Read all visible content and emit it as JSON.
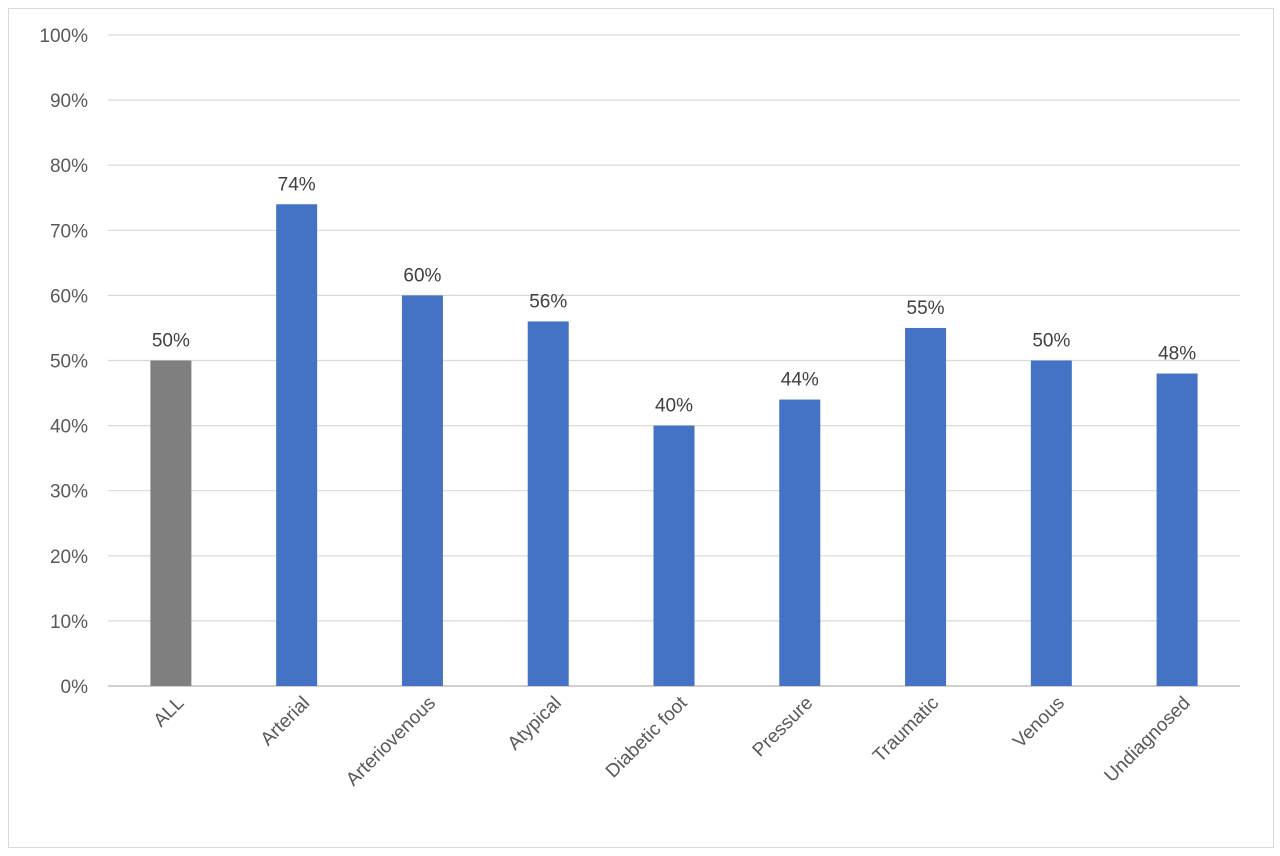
{
  "chart_data": {
    "type": "bar",
    "title": "",
    "xlabel": "",
    "ylabel": "",
    "categories": [
      "ALL",
      "Arterial",
      "Arteriovenous",
      "Atypical",
      "Diabetic foot",
      "Pressure",
      "Traumatic",
      "Venous",
      "Undiagnosed"
    ],
    "values": [
      50,
      74,
      60,
      56,
      40,
      44,
      55,
      50,
      48
    ],
    "data_labels": [
      "50%",
      "74%",
      "60%",
      "56%",
      "40%",
      "44%",
      "55%",
      "50%",
      "48%"
    ],
    "bar_colors": [
      "#7f7f7f",
      "#4472c4",
      "#4472c4",
      "#4472c4",
      "#4472c4",
      "#4472c4",
      "#4472c4",
      "#4472c4",
      "#4472c4"
    ],
    "ylim": [
      0,
      100
    ],
    "yticks": [
      0,
      10,
      20,
      30,
      40,
      50,
      60,
      70,
      80,
      90,
      100
    ],
    "ytick_labels": [
      "0%",
      "10%",
      "20%",
      "30%",
      "40%",
      "50%",
      "60%",
      "70%",
      "80%",
      "90%",
      "100%"
    ],
    "grid": true,
    "legend": "none"
  }
}
